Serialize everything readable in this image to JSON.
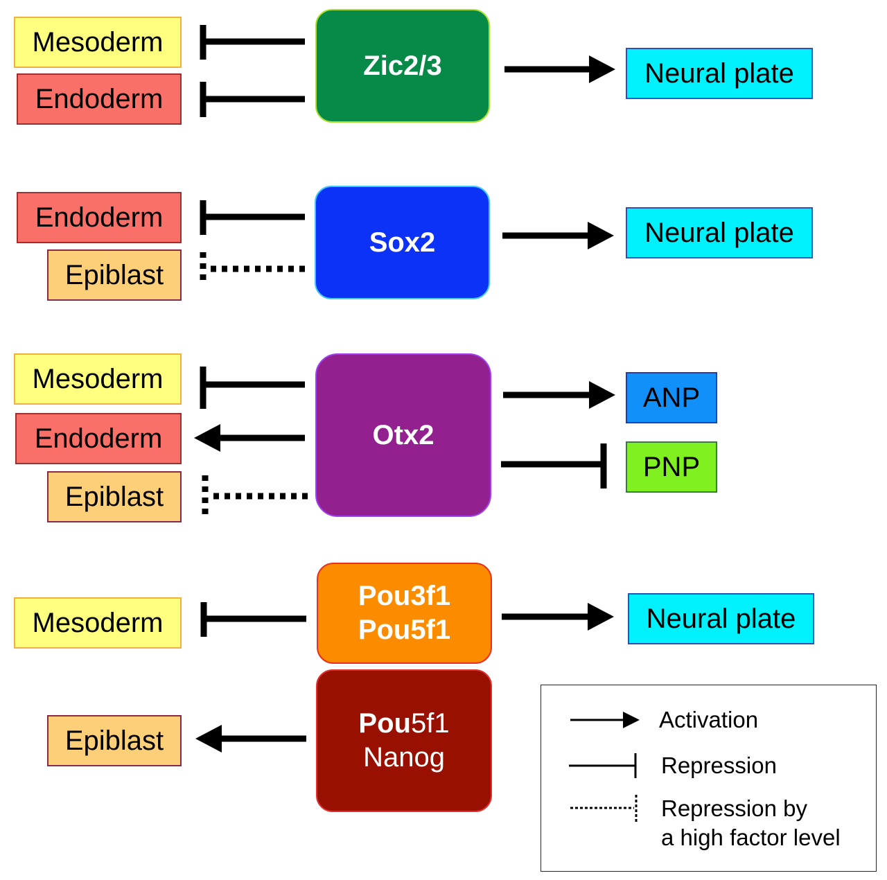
{
  "rows": {
    "zic": {
      "hub_label": "Zic2/3",
      "left_targets": [
        "Mesoderm",
        "Endoderm"
      ],
      "right_target": "Neural plate"
    },
    "sox2": {
      "hub_label": "Sox2",
      "left_targets": [
        "Endoderm",
        "Epiblast"
      ],
      "right_target": "Neural plate"
    },
    "otx2": {
      "hub_label": "Otx2",
      "left_targets": [
        "Mesoderm",
        "Endoderm",
        "Epiblast"
      ],
      "right_targets": [
        "ANP",
        "PNP"
      ]
    },
    "pou3f1": {
      "hub_lines": [
        "Pou3f1",
        "Pou5f1"
      ],
      "left_target": "Mesoderm",
      "right_target": "Neural plate"
    },
    "pou5f1_nanog": {
      "hub_line1_bold": "Pou",
      "hub_line1_rest": "5f1",
      "hub_line2": "Nanog",
      "left_target": "Epiblast"
    }
  },
  "legend": {
    "items": [
      {
        "type": "activation",
        "label": "Activation"
      },
      {
        "type": "repression",
        "label": "Repression"
      },
      {
        "type": "high-level-repression",
        "label_lines": [
          "Repression by",
          "a high factor level"
        ]
      }
    ]
  },
  "colors": {
    "zic_hub": "#078a48",
    "sox2_hub": "#0c32f8",
    "otx2_hub": "#92208e",
    "pou3f1_hub": "#fb8c00",
    "pou5f1_nanog_hub": "#981000",
    "mesoderm": "#ffff80",
    "endoderm": "#f87068",
    "epiblast": "#fccf78",
    "neural_plate": "#00f0fc",
    "anp": "#1090f8",
    "pnp": "#80f020"
  }
}
